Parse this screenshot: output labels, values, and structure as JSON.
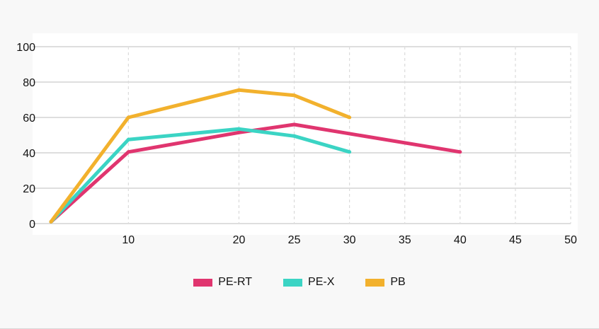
{
  "chart_data": {
    "type": "line",
    "xlim": [
      3,
      50
    ],
    "ylim": [
      0,
      100
    ],
    "x_ticks": [
      10,
      20,
      25,
      30,
      35,
      40,
      45,
      50
    ],
    "y_ticks": [
      0,
      20,
      40,
      60,
      80,
      100
    ],
    "grid": true,
    "legend_position": "bottom",
    "series": [
      {
        "name": "PE-RT",
        "color": "#e0356f",
        "points": [
          [
            3,
            1
          ],
          [
            10,
            40.5
          ],
          [
            20,
            51.5
          ],
          [
            25,
            56
          ],
          [
            40,
            40.5
          ]
        ]
      },
      {
        "name": "PE-X",
        "color": "#3bd4c4",
        "points": [
          [
            3,
            1
          ],
          [
            10,
            47.5
          ],
          [
            20,
            53.5
          ],
          [
            25,
            49.5
          ],
          [
            30,
            40.5
          ]
        ]
      },
      {
        "name": "PB",
        "color": "#f2b12d",
        "points": [
          [
            3,
            1
          ],
          [
            10,
            60
          ],
          [
            20,
            75.5
          ],
          [
            25,
            72.5
          ],
          [
            30,
            60
          ]
        ]
      }
    ]
  }
}
